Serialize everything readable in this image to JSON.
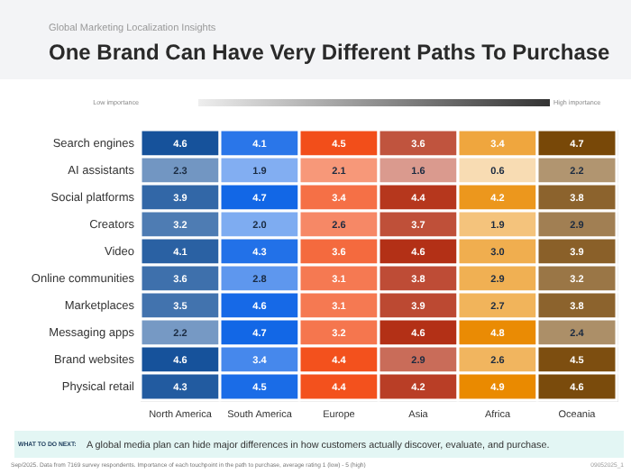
{
  "chart_data": {
    "type": "heatmap",
    "title": "One Brand Can Have Very Different Paths To Purchase",
    "subtitle": "Global Marketing Localization Insights",
    "categories": [
      "North America",
      "South America",
      "Europe",
      "Asia",
      "Africa",
      "Oceania"
    ],
    "y_categories": [
      "Search engines",
      "AI assistants",
      "Social platforms",
      "Creators",
      "Video",
      "Online communities",
      "Marketplaces",
      "Messaging apps",
      "Brand websites",
      "Physical retail"
    ],
    "cells": [
      [
        4.6,
        4.1,
        4.5,
        3.6,
        3.4,
        4.7
      ],
      [
        2.3,
        1.9,
        2.1,
        1.6,
        0.6,
        2.2
      ],
      [
        3.9,
        4.7,
        3.4,
        4.4,
        4.2,
        3.8
      ],
      [
        3.2,
        2.0,
        2.6,
        3.7,
        1.9,
        2.9
      ],
      [
        4.1,
        4.3,
        3.6,
        4.6,
        3.0,
        3.9
      ],
      [
        3.6,
        2.8,
        3.1,
        3.8,
        2.9,
        3.2
      ],
      [
        3.5,
        4.6,
        3.1,
        3.9,
        2.7,
        3.8
      ],
      [
        2.2,
        4.7,
        3.2,
        4.6,
        4.8,
        2.4
      ],
      [
        4.6,
        3.4,
        4.4,
        2.9,
        2.6,
        4.5
      ],
      [
        4.3,
        4.5,
        4.4,
        4.2,
        4.9,
        4.6
      ]
    ],
    "cell_labels": [
      [
        "4.6",
        "4.1",
        "4.5",
        "3.6",
        "3.4",
        "4.7"
      ],
      [
        "2.3",
        "1.9",
        "2.1",
        "1.6",
        "0.6",
        "2.2"
      ],
      [
        "3.9",
        "4.7",
        "3.4",
        "4.4",
        "4.2",
        "3.8"
      ],
      [
        "3.2",
        "2.0",
        "2.6",
        "3.7",
        "1.9",
        "2.9"
      ],
      [
        "4.1",
        "4.3",
        "3.6",
        "4.6",
        "3.0",
        "3.9"
      ],
      [
        "3.6",
        "2.8",
        "3.1",
        "3.8",
        "2.9",
        "3.2"
      ],
      [
        "3.5",
        "4.6",
        "3.1",
        "3.9",
        "2.7",
        "3.8"
      ],
      [
        "2.2",
        "4.7",
        "3.2",
        "4.6",
        "4.8",
        "2.4"
      ],
      [
        "4.6",
        "3.4",
        "4.4",
        "2.9",
        "2.6",
        "4.5"
      ],
      [
        "4.3",
        "4.5",
        "4.4",
        "4.2",
        "4.9",
        "4.6"
      ]
    ],
    "colors": [
      "#0b4a96",
      "#0a62e6",
      "#f2420a",
      "#b0260a",
      "#ea8a00",
      "#744200"
    ],
    "data_labels": true,
    "annotations": [
      "Low importance",
      "High importance",
      "WHAT TO DO NEXT:",
      "A global media plan can hide major differences in how customers actually discover, evaluate, and purchase.",
      "Sep/2025. Data from 7169 survey respondents. Importance of each touchpoint in the path to purchase, average rating 1 (low) - 5 (high)",
      "09052025_1"
    ]
  }
}
